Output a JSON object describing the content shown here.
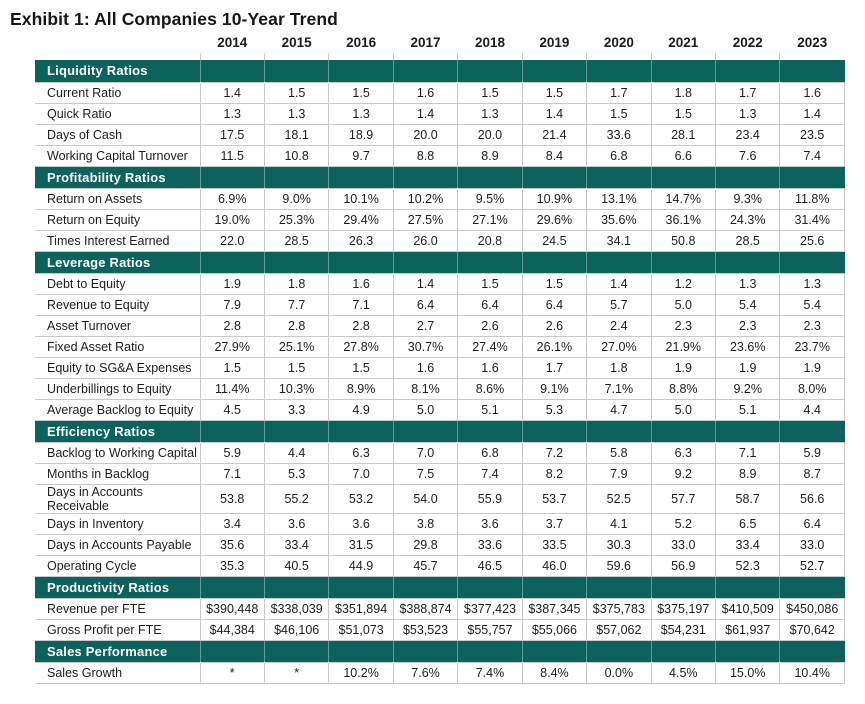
{
  "title": "Exhibit 1: All Companies 10-Year Trend",
  "years": [
    "2014",
    "2015",
    "2016",
    "2017",
    "2018",
    "2019",
    "2020",
    "2021",
    "2022",
    "2023"
  ],
  "colors": {
    "section_header_bg": "#0c635d",
    "section_header_text": "#ffffff",
    "grid_border": "#c9c9c9",
    "body_text": "#1d1d1d"
  },
  "chart_data": {
    "type": "table",
    "title": "Exhibit 1: All Companies 10-Year Trend",
    "columns": [
      "2014",
      "2015",
      "2016",
      "2017",
      "2018",
      "2019",
      "2020",
      "2021",
      "2022",
      "2023"
    ]
  },
  "sections": [
    {
      "name": "Liquidity Ratios",
      "rows": [
        {
          "label": "Current Ratio",
          "values": [
            "1.4",
            "1.5",
            "1.5",
            "1.6",
            "1.5",
            "1.5",
            "1.7",
            "1.8",
            "1.7",
            "1.6"
          ]
        },
        {
          "label": "Quick Ratio",
          "values": [
            "1.3",
            "1.3",
            "1.3",
            "1.4",
            "1.3",
            "1.4",
            "1.5",
            "1.5",
            "1.3",
            "1.4"
          ]
        },
        {
          "label": "Days of Cash",
          "values": [
            "17.5",
            "18.1",
            "18.9",
            "20.0",
            "20.0",
            "21.4",
            "33.6",
            "28.1",
            "23.4",
            "23.5"
          ]
        },
        {
          "label": "Working Capital Turnover",
          "values": [
            "11.5",
            "10.8",
            "9.7",
            "8.8",
            "8.9",
            "8.4",
            "6.8",
            "6.6",
            "7.6",
            "7.4"
          ]
        }
      ]
    },
    {
      "name": "Profitability Ratios",
      "rows": [
        {
          "label": "Return on Assets",
          "values": [
            "6.9%",
            "9.0%",
            "10.1%",
            "10.2%",
            "9.5%",
            "10.9%",
            "13.1%",
            "14.7%",
            "9.3%",
            "11.8%"
          ]
        },
        {
          "label": "Return on Equity",
          "values": [
            "19.0%",
            "25.3%",
            "29.4%",
            "27.5%",
            "27.1%",
            "29.6%",
            "35.6%",
            "36.1%",
            "24.3%",
            "31.4%"
          ]
        },
        {
          "label": "Times Interest Earned",
          "values": [
            "22.0",
            "28.5",
            "26.3",
            "26.0",
            "20.8",
            "24.5",
            "34.1",
            "50.8",
            "28.5",
            "25.6"
          ]
        }
      ]
    },
    {
      "name": "Leverage Ratios",
      "rows": [
        {
          "label": "Debt to Equity",
          "values": [
            "1.9",
            "1.8",
            "1.6",
            "1.4",
            "1.5",
            "1.5",
            "1.4",
            "1.2",
            "1.3",
            "1.3"
          ]
        },
        {
          "label": "Revenue to Equity",
          "values": [
            "7.9",
            "7.7",
            "7.1",
            "6.4",
            "6.4",
            "6.4",
            "5.7",
            "5.0",
            "5.4",
            "5.4"
          ]
        },
        {
          "label": "Asset Turnover",
          "values": [
            "2.8",
            "2.8",
            "2.8",
            "2.7",
            "2.6",
            "2.6",
            "2.4",
            "2.3",
            "2.3",
            "2.3"
          ]
        },
        {
          "label": "Fixed Asset Ratio",
          "values": [
            "27.9%",
            "25.1%",
            "27.8%",
            "30.7%",
            "27.4%",
            "26.1%",
            "27.0%",
            "21.9%",
            "23.6%",
            "23.7%"
          ]
        },
        {
          "label": "Equity to SG&A Expenses",
          "values": [
            "1.5",
            "1.5",
            "1.5",
            "1.6",
            "1.6",
            "1.7",
            "1.8",
            "1.9",
            "1.9",
            "1.9"
          ]
        },
        {
          "label": "Underbillings to Equity",
          "values": [
            "11.4%",
            "10.3%",
            "8.9%",
            "8.1%",
            "8.6%",
            "9.1%",
            "7.1%",
            "8.8%",
            "9.2%",
            "8.0%"
          ]
        },
        {
          "label": "Average Backlog to Equity",
          "values": [
            "4.5",
            "3.3",
            "4.9",
            "5.0",
            "5.1",
            "5.3",
            "4.7",
            "5.0",
            "5.1",
            "4.4"
          ]
        }
      ]
    },
    {
      "name": "Efficiency Ratios",
      "rows": [
        {
          "label": "Backlog to Working Capital",
          "values": [
            "5.9",
            "4.4",
            "6.3",
            "7.0",
            "6.8",
            "7.2",
            "5.8",
            "6.3",
            "7.1",
            "5.9"
          ]
        },
        {
          "label": "Months in Backlog",
          "values": [
            "7.1",
            "5.3",
            "7.0",
            "7.5",
            "7.4",
            "8.2",
            "7.9",
            "9.2",
            "8.9",
            "8.7"
          ]
        },
        {
          "label": "Days in Accounts Receivable",
          "values": [
            "53.8",
            "55.2",
            "53.2",
            "54.0",
            "55.9",
            "53.7",
            "52.5",
            "57.7",
            "58.7",
            "56.6"
          ]
        },
        {
          "label": "Days in Inventory",
          "values": [
            "3.4",
            "3.6",
            "3.6",
            "3.8",
            "3.6",
            "3.7",
            "4.1",
            "5.2",
            "6.5",
            "6.4"
          ]
        },
        {
          "label": "Days in Accounts Payable",
          "values": [
            "35.6",
            "33.4",
            "31.5",
            "29.8",
            "33.6",
            "33.5",
            "30.3",
            "33.0",
            "33.4",
            "33.0"
          ]
        },
        {
          "label": "Operating Cycle",
          "values": [
            "35.3",
            "40.5",
            "44.9",
            "45.7",
            "46.5",
            "46.0",
            "59.6",
            "56.9",
            "52.3",
            "52.7"
          ]
        }
      ]
    },
    {
      "name": "Productivity Ratios",
      "rows": [
        {
          "label": "Revenue per FTE",
          "values": [
            "$390,448",
            "$338,039",
            "$351,894",
            "$388,874",
            "$377,423",
            "$387,345",
            "$375,783",
            "$375,197",
            "$410,509",
            "$450,086"
          ]
        },
        {
          "label": "Gross Profit per FTE",
          "values": [
            "$44,384",
            "$46,106",
            "$51,073",
            "$53,523",
            "$55,757",
            "$55,066",
            "$57,062",
            "$54,231",
            "$61,937",
            "$70,642"
          ]
        }
      ]
    },
    {
      "name": "Sales Performance",
      "rows": [
        {
          "label": "Sales Growth",
          "values": [
            "*",
            "*",
            "10.2%",
            "7.6%",
            "7.4%",
            "8.4%",
            "0.0%",
            "4.5%",
            "15.0%",
            "10.4%"
          ]
        }
      ]
    }
  ]
}
